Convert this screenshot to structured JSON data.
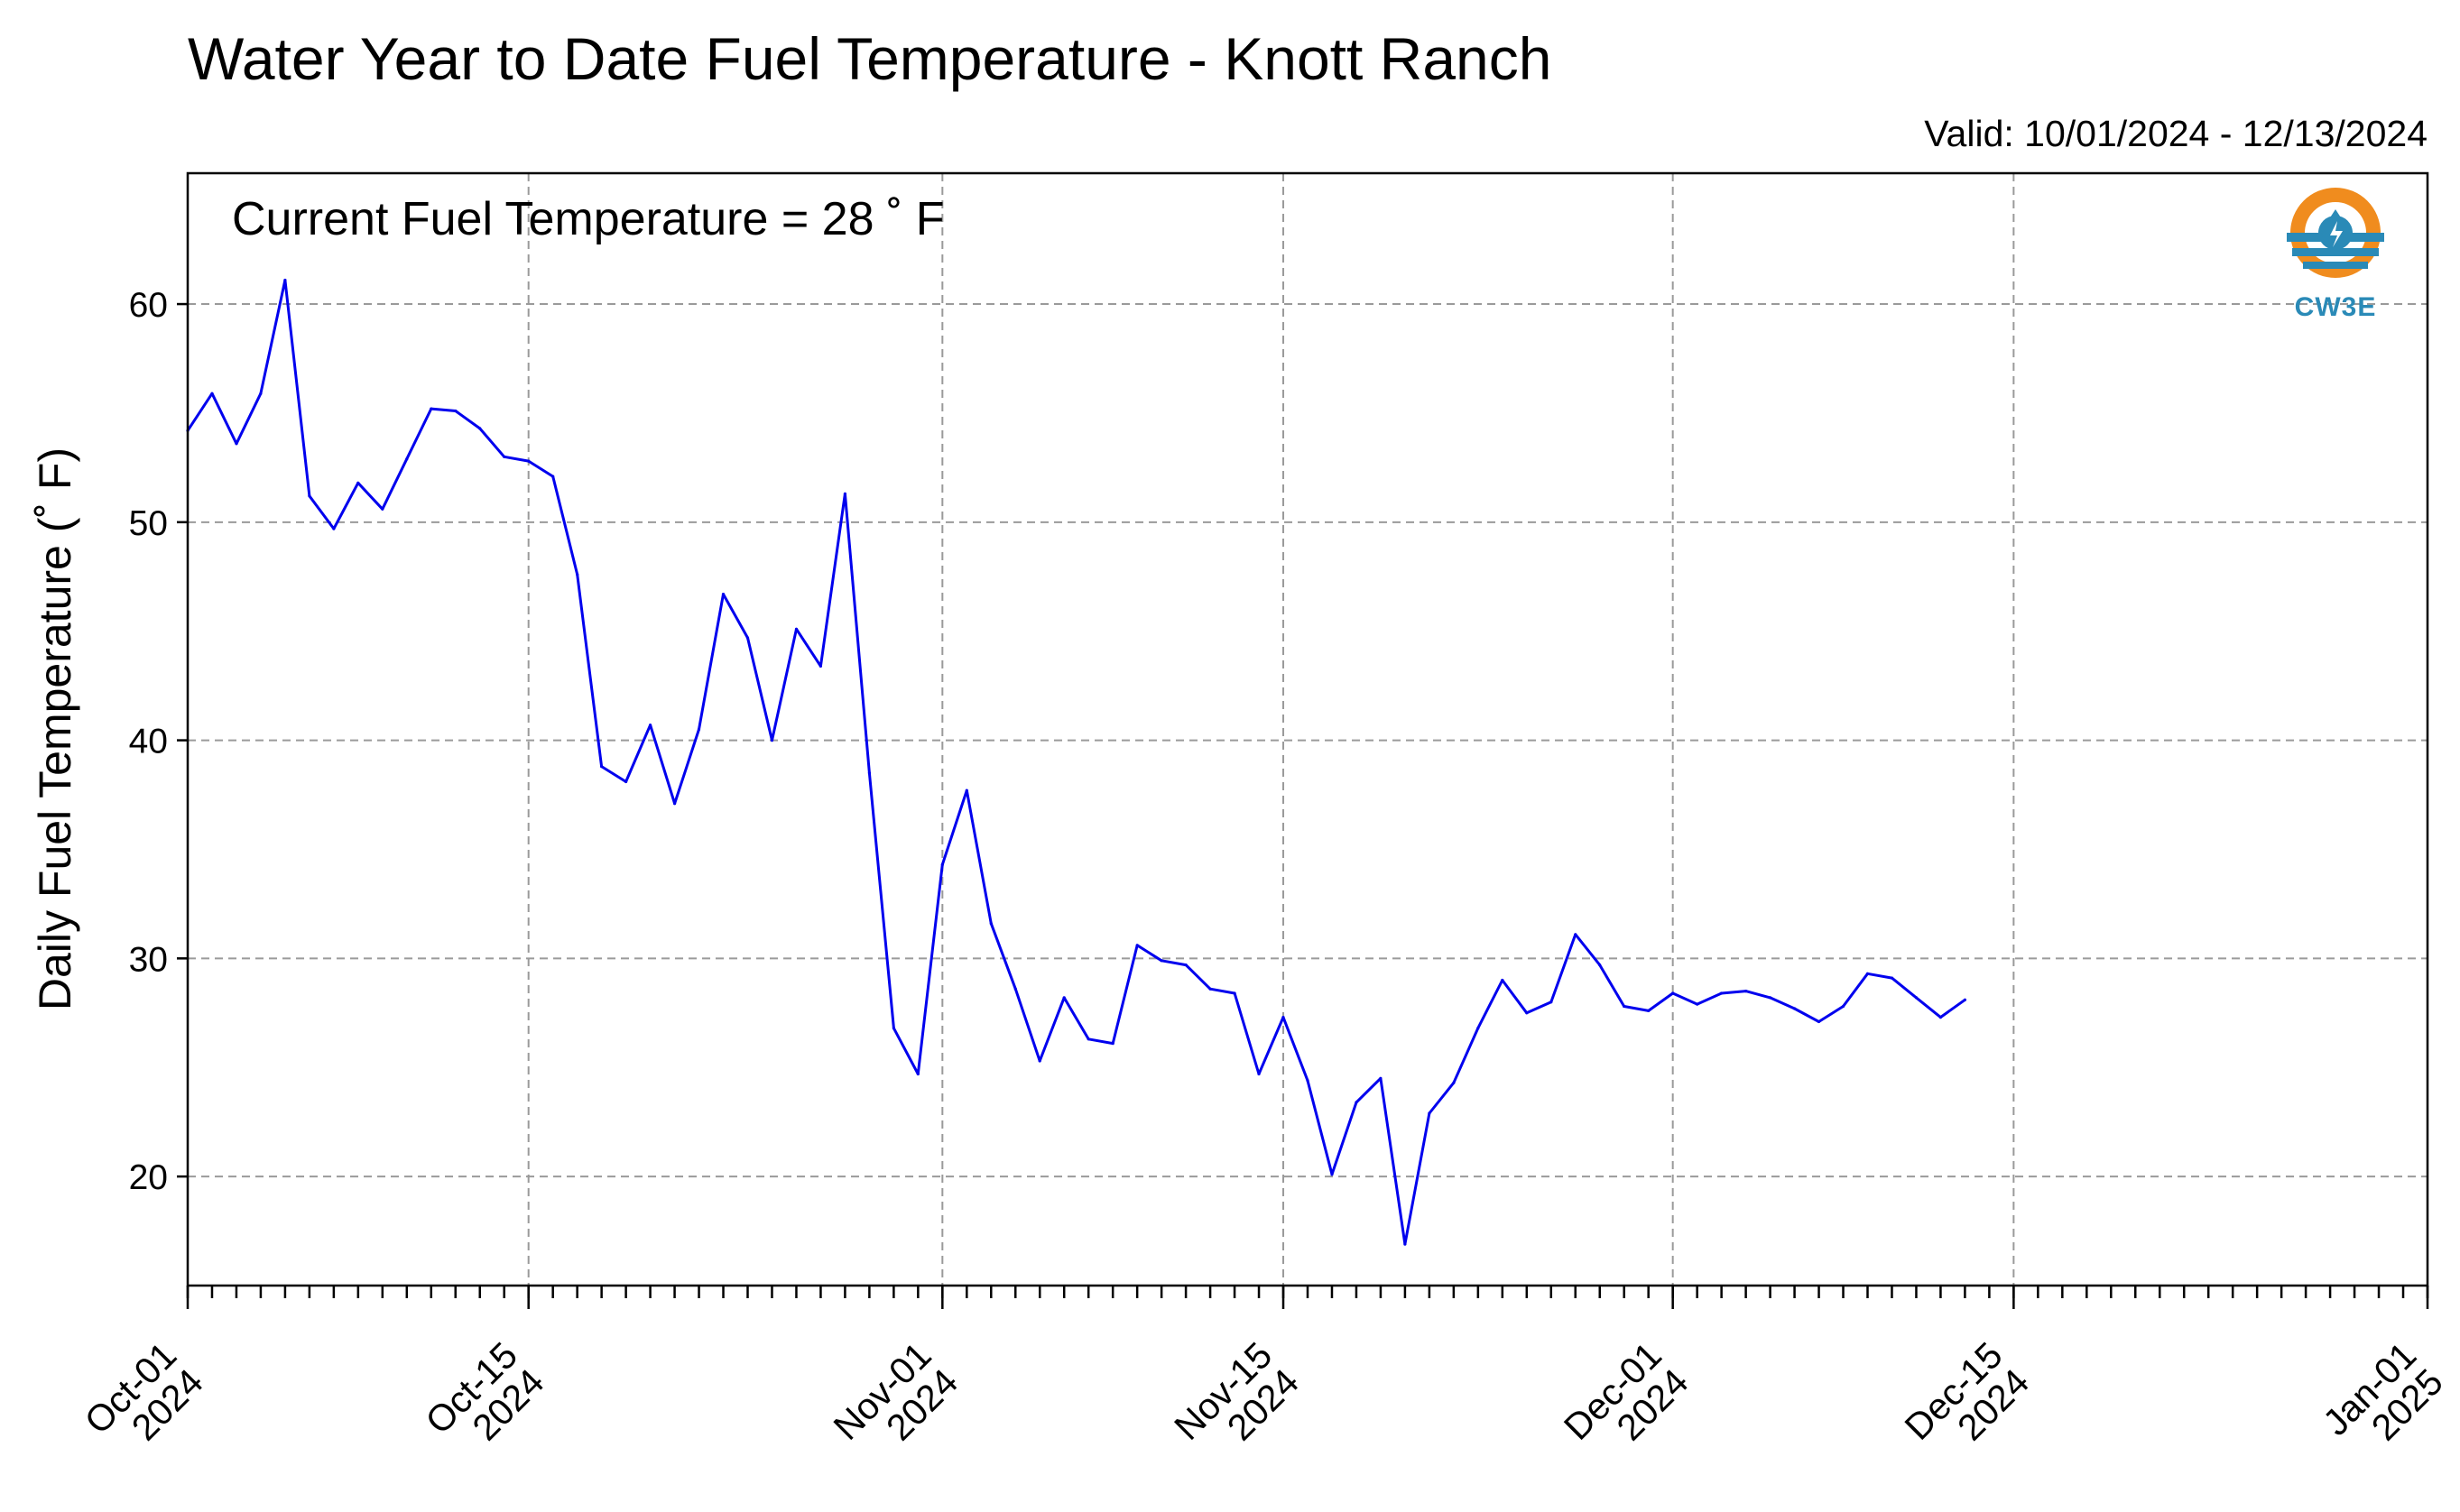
{
  "chart_data": {
    "type": "line",
    "title": "Water Year to Date Fuel Temperature - Knott Ranch",
    "subtitle": "Valid: 10/01/2024 - 12/13/2024",
    "annotation": "Current Fuel Temperature = 28 ˚ F",
    "ylabel": "Daily Fuel Temperature (˚ F)",
    "xlabel": "",
    "ylim": [
      15,
      66
    ],
    "yticks": [
      20,
      30,
      40,
      50,
      60
    ],
    "xlim": [
      "2024-10-01",
      "2025-01-01"
    ],
    "xticks": [
      {
        "date": "2024-10-01",
        "line1": "Oct-01",
        "line2": "2024"
      },
      {
        "date": "2024-10-15",
        "line1": "Oct-15",
        "line2": "2024"
      },
      {
        "date": "2024-11-01",
        "line1": "Nov-01",
        "line2": "2024"
      },
      {
        "date": "2024-11-15",
        "line1": "Nov-15",
        "line2": "2024"
      },
      {
        "date": "2024-12-01",
        "line1": "Dec-01",
        "line2": "2024"
      },
      {
        "date": "2024-12-15",
        "line1": "Dec-15",
        "line2": "2024"
      },
      {
        "date": "2025-01-01",
        "line1": "Jan-01",
        "line2": "2025"
      }
    ],
    "grid": true,
    "series": [
      {
        "color": "#0000ee",
        "points": [
          [
            "2024-10-01",
            54.2
          ],
          [
            "2024-10-02",
            55.9
          ],
          [
            "2024-10-03",
            53.6
          ],
          [
            "2024-10-04",
            55.9
          ],
          [
            "2024-10-05",
            61.1
          ],
          [
            "2024-10-06",
            51.2
          ],
          [
            "2024-10-07",
            49.7
          ],
          [
            "2024-10-08",
            51.8
          ],
          [
            "2024-10-09",
            50.6
          ],
          [
            "2024-10-10",
            52.9
          ],
          [
            "2024-10-11",
            55.2
          ],
          [
            "2024-10-12",
            55.1
          ],
          [
            "2024-10-13",
            54.3
          ],
          [
            "2024-10-14",
            53.0
          ],
          [
            "2024-10-15",
            52.8
          ],
          [
            "2024-10-16",
            52.1
          ],
          [
            "2024-10-17",
            47.6
          ],
          [
            "2024-10-18",
            38.8
          ],
          [
            "2024-10-19",
            38.1
          ],
          [
            "2024-10-20",
            40.7
          ],
          [
            "2024-10-21",
            37.1
          ],
          [
            "2024-10-22",
            40.5
          ],
          [
            "2024-10-23",
            46.7
          ],
          [
            "2024-10-24",
            44.7
          ],
          [
            "2024-10-25",
            40.0
          ],
          [
            "2024-10-26",
            45.1
          ],
          [
            "2024-10-27",
            43.4
          ],
          [
            "2024-10-28",
            51.3
          ],
          [
            "2024-10-29",
            38.5
          ],
          [
            "2024-10-30",
            26.8
          ],
          [
            "2024-10-31",
            24.7
          ],
          [
            "2024-11-01",
            34.3
          ],
          [
            "2024-11-02",
            37.7
          ],
          [
            "2024-11-03",
            31.6
          ],
          [
            "2024-11-04",
            28.6
          ],
          [
            "2024-11-05",
            25.3
          ],
          [
            "2024-11-06",
            28.2
          ],
          [
            "2024-11-07",
            26.3
          ],
          [
            "2024-11-08",
            26.1
          ],
          [
            "2024-11-09",
            30.6
          ],
          [
            "2024-11-10",
            29.9
          ],
          [
            "2024-11-11",
            29.7
          ],
          [
            "2024-11-12",
            28.6
          ],
          [
            "2024-11-13",
            28.4
          ],
          [
            "2024-11-14",
            24.7
          ],
          [
            "2024-11-15",
            27.3
          ],
          [
            "2024-11-16",
            24.4
          ],
          [
            "2024-11-17",
            20.1
          ],
          [
            "2024-11-18",
            23.4
          ],
          [
            "2024-11-19",
            24.5
          ],
          [
            "2024-11-20",
            16.9
          ],
          [
            "2024-11-21",
            22.9
          ],
          [
            "2024-11-22",
            24.3
          ],
          [
            "2024-11-23",
            26.8
          ],
          [
            "2024-11-24",
            29.0
          ],
          [
            "2024-11-25",
            27.5
          ],
          [
            "2024-11-26",
            28.0
          ],
          [
            "2024-11-27",
            31.1
          ],
          [
            "2024-11-28",
            29.7
          ],
          [
            "2024-11-29",
            27.8
          ],
          [
            "2024-11-30",
            27.6
          ],
          [
            "2024-12-01",
            28.4
          ],
          [
            "2024-12-02",
            27.9
          ],
          [
            "2024-12-03",
            28.4
          ],
          [
            "2024-12-04",
            28.5
          ],
          [
            "2024-12-05",
            28.2
          ],
          [
            "2024-12-06",
            27.7
          ],
          [
            "2024-12-07",
            27.1
          ],
          [
            "2024-12-08",
            27.8
          ],
          [
            "2024-12-09",
            29.3
          ],
          [
            "2024-12-10",
            29.1
          ],
          [
            "2024-12-11",
            28.2
          ],
          [
            "2024-12-12",
            27.3
          ],
          [
            "2024-12-13",
            28.1
          ]
        ]
      }
    ]
  },
  "logo": {
    "text": "CW3E",
    "ring_color": "#f08c1e",
    "water_color": "#2a8ab7",
    "icon": "water-drop-icon"
  }
}
